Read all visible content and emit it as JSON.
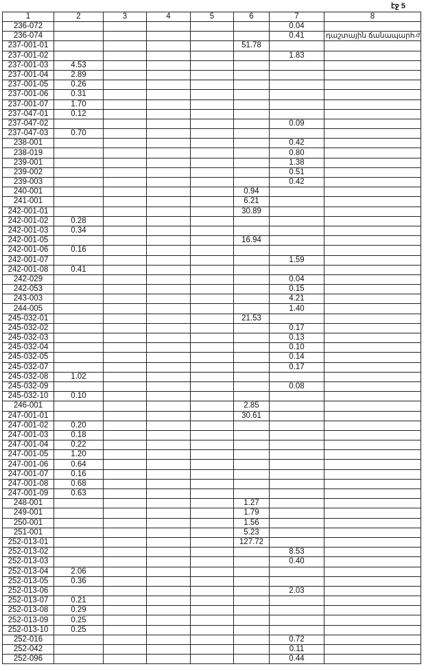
{
  "page_label": "էջ 5",
  "side_mark": ".ժ",
  "table": {
    "headers": [
      "1",
      "2",
      "3",
      "4",
      "5",
      "6",
      "7",
      "8"
    ],
    "rows": [
      [
        "236-072",
        "",
        "",
        "",
        "",
        "",
        "0.04",
        ""
      ],
      [
        "236-074",
        "",
        "",
        "",
        "",
        "",
        "0.41",
        "դաշտային ճանապարհ"
      ],
      [
        "237-001-01",
        "",
        "",
        "",
        "",
        "51.78",
        "",
        ""
      ],
      [
        "237-001-02",
        "",
        "",
        "",
        "",
        "",
        "1.83",
        ""
      ],
      [
        "237-001-03",
        "4.53",
        "",
        "",
        "",
        "",
        "",
        ""
      ],
      [
        "237-001-04",
        "2.89",
        "",
        "",
        "",
        "",
        "",
        ""
      ],
      [
        "237-001-05",
        "0.26",
        "",
        "",
        "",
        "",
        "",
        ""
      ],
      [
        "237-001-06",
        "0.31",
        "",
        "",
        "",
        "",
        "",
        ""
      ],
      [
        "237-001-07",
        "1.70",
        "",
        "",
        "",
        "",
        "",
        ""
      ],
      [
        "237-047-01",
        "0.12",
        "",
        "",
        "",
        "",
        "",
        ""
      ],
      [
        "237-047-02",
        "",
        "",
        "",
        "",
        "",
        "0.09",
        ""
      ],
      [
        "237-047-03",
        "0.70",
        "",
        "",
        "",
        "",
        "",
        ""
      ],
      [
        "238-001",
        "",
        "",
        "",
        "",
        "",
        "0.42",
        ""
      ],
      [
        "238-019",
        "",
        "",
        "",
        "",
        "",
        "0.80",
        ""
      ],
      [
        "239-001",
        "",
        "",
        "",
        "",
        "",
        "1.38",
        ""
      ],
      [
        "239-002",
        "",
        "",
        "",
        "",
        "",
        "0.51",
        ""
      ],
      [
        "239-003",
        "",
        "",
        "",
        "",
        "",
        "0.42",
        ""
      ],
      [
        "240-001",
        "",
        "",
        "",
        "",
        "0.94",
        "",
        ""
      ],
      [
        "241-001",
        "",
        "",
        "",
        "",
        "6.21",
        "",
        ""
      ],
      [
        "242-001-01",
        "",
        "",
        "",
        "",
        "30.89",
        "",
        ""
      ],
      [
        "242-001-02",
        "0.28",
        "",
        "",
        "",
        "",
        "",
        ""
      ],
      [
        "242-001-03",
        "0.34",
        "",
        "",
        "",
        "",
        "",
        ""
      ],
      [
        "242-001-05",
        "",
        "",
        "",
        "",
        "16.94",
        "",
        ""
      ],
      [
        "242-001-06",
        "0.16",
        "",
        "",
        "",
        "",
        "",
        ""
      ],
      [
        "242-001-07",
        "",
        "",
        "",
        "",
        "",
        "1.59",
        ""
      ],
      [
        "242-001-08",
        "0.41",
        "",
        "",
        "",
        "",
        "",
        ""
      ],
      [
        "242-029",
        "",
        "",
        "",
        "",
        "",
        "0.04",
        ""
      ],
      [
        "242-053",
        "",
        "",
        "",
        "",
        "",
        "0.15",
        ""
      ],
      [
        "243-003",
        "",
        "",
        "",
        "",
        "",
        "4.21",
        ""
      ],
      [
        "244-005",
        "",
        "",
        "",
        "",
        "",
        "1.40",
        ""
      ],
      [
        "245-032-01",
        "",
        "",
        "",
        "",
        "21.53",
        "",
        ""
      ],
      [
        "245-032-02",
        "",
        "",
        "",
        "",
        "",
        "0.17",
        ""
      ],
      [
        "245-032-03",
        "",
        "",
        "",
        "",
        "",
        "0.13",
        ""
      ],
      [
        "245-032-04",
        "",
        "",
        "",
        "",
        "",
        "0.10",
        ""
      ],
      [
        "245-032-05",
        "",
        "",
        "",
        "",
        "",
        "0.14",
        ""
      ],
      [
        "245-032-07",
        "",
        "",
        "",
        "",
        "",
        "0.17",
        ""
      ],
      [
        "245-032-08",
        "1.02",
        "",
        "",
        "",
        "",
        "",
        ""
      ],
      [
        "245-032-09",
        "",
        "",
        "",
        "",
        "",
        "0.08",
        ""
      ],
      [
        "245-032-10",
        "0.10",
        "",
        "",
        "",
        "",
        "",
        ""
      ],
      [
        "246-001",
        "",
        "",
        "",
        "",
        "2.85",
        "",
        ""
      ],
      [
        "247-001-01",
        "",
        "",
        "",
        "",
        "30.61",
        "",
        ""
      ],
      [
        "247-001-02",
        "0.20",
        "",
        "",
        "",
        "",
        "",
        ""
      ],
      [
        "247-001-03",
        "0.18",
        "",
        "",
        "",
        "",
        "",
        ""
      ],
      [
        "247-001-04",
        "0.22",
        "",
        "",
        "",
        "",
        "",
        ""
      ],
      [
        "247-001-05",
        "1.20",
        "",
        "",
        "",
        "",
        "",
        ""
      ],
      [
        "247-001-06",
        "0.64",
        "",
        "",
        "",
        "",
        "",
        ""
      ],
      [
        "247-001-07",
        "0.16",
        "",
        "",
        "",
        "",
        "",
        ""
      ],
      [
        "247-001-08",
        "0.68",
        "",
        "",
        "",
        "",
        "",
        ""
      ],
      [
        "247-001-09",
        "0.63",
        "",
        "",
        "",
        "",
        "",
        ""
      ],
      [
        "248-001",
        "",
        "",
        "",
        "",
        "1.27",
        "",
        ""
      ],
      [
        "249-001",
        "",
        "",
        "",
        "",
        "1.79",
        "",
        ""
      ],
      [
        "250-001",
        "",
        "",
        "",
        "",
        "1.56",
        "",
        ""
      ],
      [
        "251-001",
        "",
        "",
        "",
        "",
        "5.23",
        "",
        ""
      ],
      [
        "252-013-01",
        "",
        "",
        "",
        "",
        "127.72",
        "",
        ""
      ],
      [
        "252-013-02",
        "",
        "",
        "",
        "",
        "",
        "8.53",
        ""
      ],
      [
        "252-013-03",
        "",
        "",
        "",
        "",
        "",
        "0.40",
        ""
      ],
      [
        "252-013-04",
        "2.06",
        "",
        "",
        "",
        "",
        "",
        ""
      ],
      [
        "252-013-05",
        "0.36",
        "",
        "",
        "",
        "",
        "",
        ""
      ],
      [
        "252-013-06",
        "",
        "",
        "",
        "",
        "",
        "2.03",
        ""
      ],
      [
        "252-013-07",
        "0.21",
        "",
        "",
        "",
        "",
        "",
        ""
      ],
      [
        "252-013-08",
        "0.29",
        "",
        "",
        "",
        "",
        "",
        ""
      ],
      [
        "252-013-09",
        "0.25",
        "",
        "",
        "",
        "",
        "",
        ""
      ],
      [
        "252-013-10",
        "0.25",
        "",
        "",
        "",
        "",
        "",
        ""
      ],
      [
        "252-016",
        "",
        "",
        "",
        "",
        "",
        "0.72",
        ""
      ],
      [
        "252-042",
        "",
        "",
        "",
        "",
        "",
        "0.11",
        ""
      ],
      [
        "252-096",
        "",
        "",
        "",
        "",
        "",
        "0.44",
        ""
      ]
    ]
  }
}
